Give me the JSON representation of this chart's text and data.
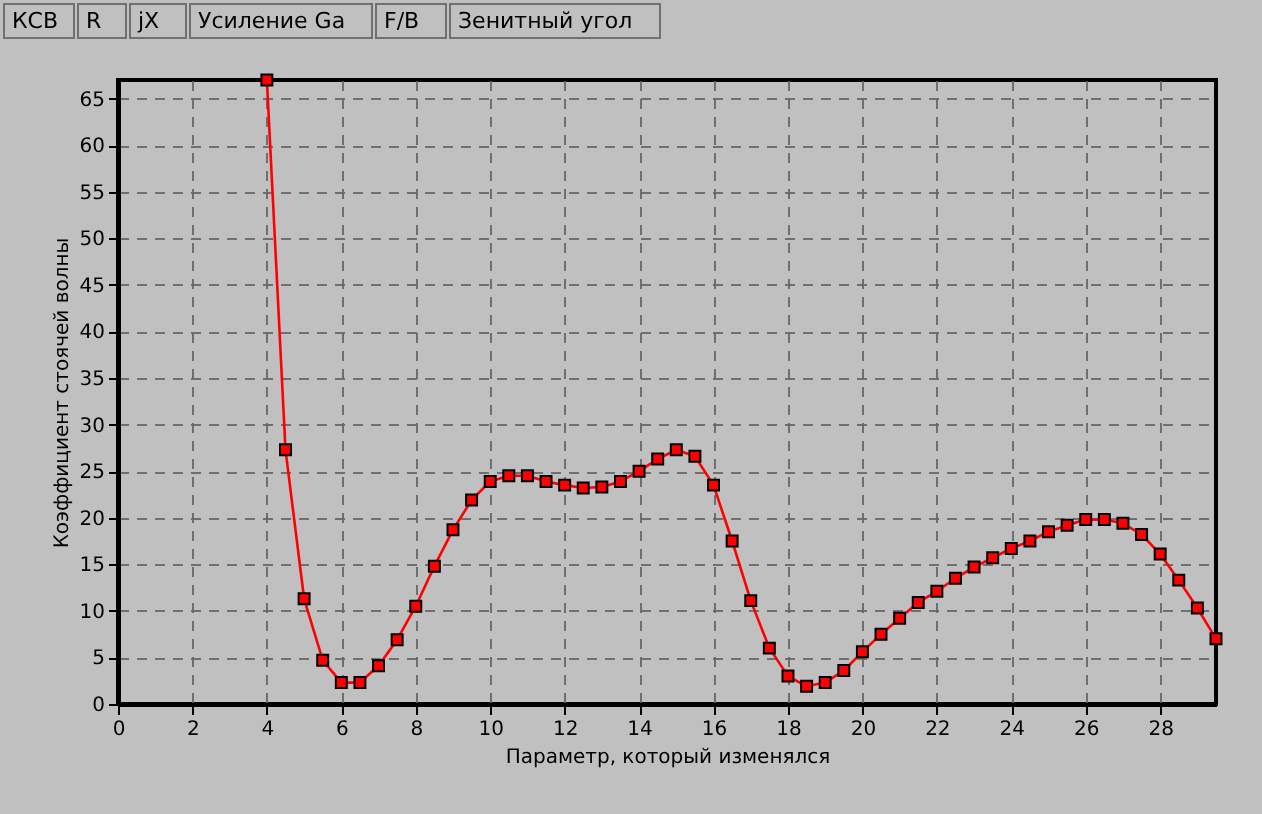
{
  "chart_data": {
    "type": "line",
    "xlabel": "Параметр, который изменялся",
    "ylabel": "Коэффициент стоячей волны",
    "annotations": [
      "КСВ",
      "R",
      "jX",
      "Усиление Ga",
      "F/B",
      "Зенитный угол"
    ],
    "x": [
      4,
      4.5,
      5,
      5.5,
      6,
      6.5,
      7,
      7.5,
      8,
      8.5,
      9,
      9.5,
      10,
      10.5,
      11,
      11.5,
      12,
      12.5,
      13,
      13.5,
      14,
      14.5,
      15,
      15.5,
      16,
      16.5,
      17,
      17.5,
      18,
      18.5,
      19,
      19.5,
      20,
      20.5,
      21,
      21.5,
      22,
      22.5,
      23,
      23.5,
      24,
      24.5,
      25,
      25.5,
      26,
      26.5,
      27,
      27.5,
      28,
      28.5,
      29,
      29.5
    ],
    "series": [
      {
        "color": "#ff0000",
        "values": [
          67,
          27.3,
          11.3,
          4.7,
          2.3,
          2.3,
          4.1,
          6.9,
          10.5,
          14.8,
          18.7,
          21.9,
          23.9,
          24.5,
          24.5,
          23.9,
          23.5,
          23.2,
          23.3,
          23.9,
          25,
          26.3,
          27.3,
          26.6,
          23.5,
          17.5,
          11.1,
          6,
          3,
          1.9,
          2.3,
          3.6,
          5.6,
          7.5,
          9.2,
          10.9,
          12.1,
          13.5,
          14.7,
          15.7,
          16.7,
          17.5,
          18.5,
          19.2,
          19.8,
          19.8,
          19.4,
          18.2,
          16.1,
          13.3,
          10.3,
          7
        ]
      }
    ],
    "xlim": [
      0,
      29.5
    ],
    "xticks": [
      0,
      2,
      4,
      6,
      8,
      10,
      12,
      14,
      16,
      18,
      20,
      22,
      24,
      26,
      28
    ],
    "ylim": [
      0,
      67
    ],
    "yticks": [
      0,
      5,
      10,
      15,
      20,
      25,
      30,
      35,
      40,
      45,
      50,
      55,
      60,
      65
    ],
    "grid": true,
    "marker": "square",
    "line_style": "solid"
  }
}
